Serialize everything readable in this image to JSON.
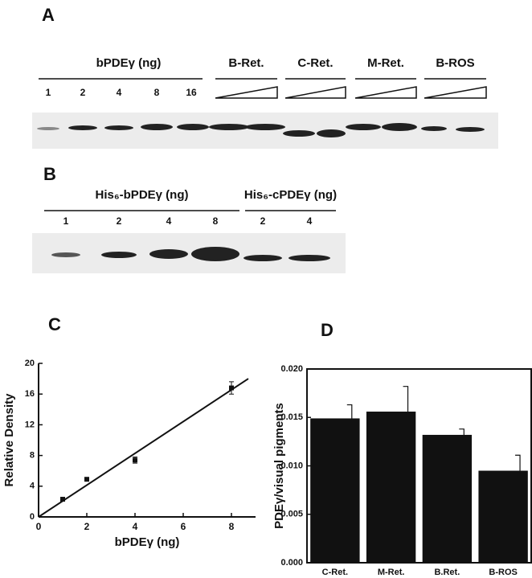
{
  "panel_a": {
    "label": "A",
    "group_title": "bPDEγ (ng)",
    "lanes": [
      "1",
      "2",
      "4",
      "8",
      "16"
    ],
    "groups": [
      "B-Ret.",
      "C-Ret.",
      "M-Ret.",
      "B-ROS"
    ]
  },
  "panel_b": {
    "label": "B",
    "groups": [
      {
        "title": "His₆-bPDEγ (ng)",
        "lanes": [
          "1",
          "2",
          "4",
          "8"
        ]
      },
      {
        "title": "His₆-cPDEγ (ng)",
        "lanes": [
          "2",
          "4"
        ]
      }
    ]
  },
  "chart_data": [
    {
      "type": "scatter",
      "title": "C",
      "x_label": "bPDEγ (ng)",
      "y_label": "Relative Density",
      "x": [
        1,
        2,
        4,
        8
      ],
      "values": [
        2.3,
        4.9,
        7.4,
        16.8
      ],
      "errors": [
        0.2,
        0.2,
        0.4,
        0.8
      ],
      "color": "#111111",
      "fit_line": {
        "x": [
          0,
          8.7
        ],
        "values": [
          0,
          18
        ]
      },
      "xlim": [
        0,
        9
      ],
      "xticks": [
        0,
        2,
        4,
        6,
        8
      ],
      "ylim": [
        0,
        20
      ],
      "yticks": [
        0,
        4,
        8,
        12,
        16,
        20
      ]
    },
    {
      "type": "bar",
      "title": "D",
      "y_label": "PDEγ/visual pigments",
      "categories": [
        "C-Ret.",
        "M-Ret.",
        "B.Ret.",
        "B-ROS"
      ],
      "values": [
        0.0149,
        0.0156,
        0.0132,
        0.0095
      ],
      "errors": [
        0.0014,
        0.0026,
        0.0006,
        0.0016
      ],
      "color": "#111111",
      "ylim": [
        0,
        0.02
      ],
      "yticks": [
        {
          "value": 0,
          "label": "0.000"
        },
        {
          "value": 0.005,
          "label": "0.005"
        },
        {
          "value": 0.01,
          "label": "0.010"
        },
        {
          "value": 0.015,
          "label": "0.015"
        },
        {
          "value": 0.02,
          "label": "0.020"
        }
      ]
    }
  ]
}
